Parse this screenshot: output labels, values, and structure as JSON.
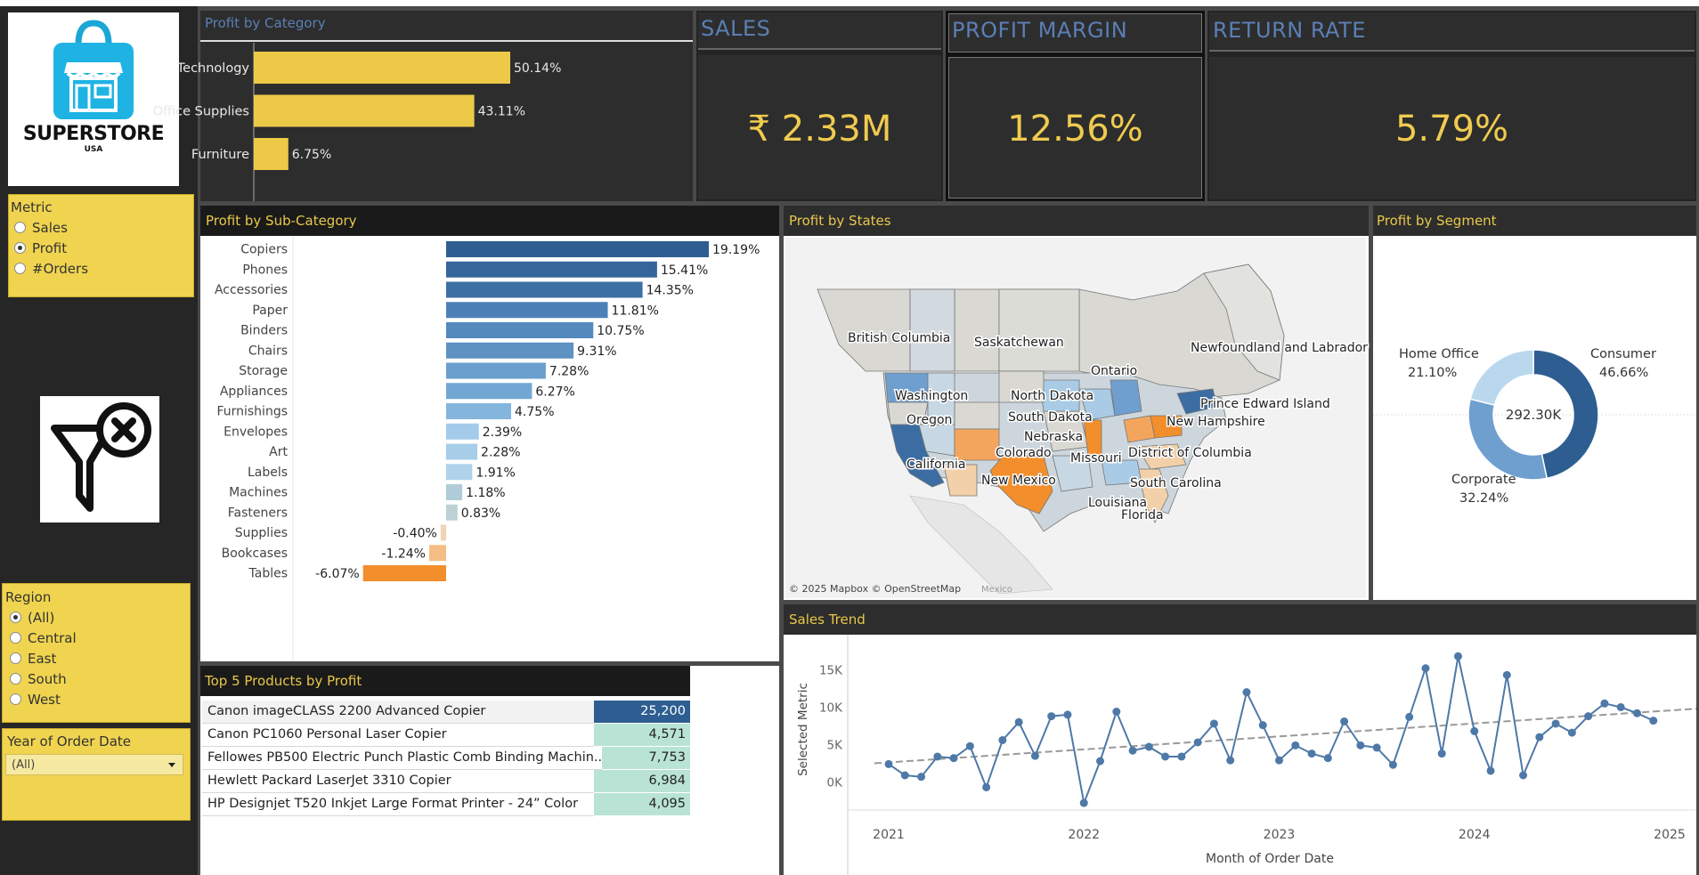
{
  "logo": {
    "name": "SUPERSTORE",
    "sub": "USA"
  },
  "metric_filter": {
    "title": "Metric",
    "options": [
      {
        "label": "Sales",
        "selected": false
      },
      {
        "label": "Profit",
        "selected": true
      },
      {
        "label": "#Orders",
        "selected": false
      }
    ]
  },
  "clear_filter_icon": "filter-clear-icon",
  "region_filter": {
    "title": "Region",
    "options": [
      {
        "label": "(All)",
        "selected": true
      },
      {
        "label": "Central",
        "selected": false
      },
      {
        "label": "East",
        "selected": false
      },
      {
        "label": "South",
        "selected": false
      },
      {
        "label": "West",
        "selected": false
      }
    ]
  },
  "year_filter": {
    "title": "Year of Order Date",
    "value": "(All)"
  },
  "profit_by_category": {
    "title": "Profit by Category",
    "chart_data": {
      "type": "bar",
      "categories": [
        "Technology",
        "Office Supplies",
        "Furniture"
      ],
      "values": [
        50.14,
        43.11,
        6.75
      ],
      "labels": [
        "50.14%",
        "43.11%",
        "6.75%"
      ],
      "color": "#edc948"
    }
  },
  "kpis": {
    "sales": {
      "title": "SALES",
      "value": "₹ 2.33M"
    },
    "profit_margin": {
      "title": "PROFIT MARGIN",
      "value": "12.56%"
    },
    "return_rate": {
      "title": "RETURN RATE",
      "value": "5.79%"
    }
  },
  "profit_by_subcategory": {
    "title": "Profit by Sub-Category",
    "chart_data": {
      "type": "bar",
      "categories": [
        "Copiers",
        "Phones",
        "Accessories",
        "Paper",
        "Binders",
        "Chairs",
        "Storage",
        "Appliances",
        "Furnishings",
        "Envelopes",
        "Art",
        "Labels",
        "Machines",
        "Fasteners",
        "Supplies",
        "Bookcases",
        "Tables"
      ],
      "values": [
        19.19,
        15.41,
        14.35,
        11.81,
        10.75,
        9.31,
        7.28,
        6.27,
        4.75,
        2.39,
        2.28,
        1.91,
        1.18,
        0.83,
        -0.4,
        -1.24,
        -6.07
      ],
      "labels": [
        "19.19%",
        "15.41%",
        "14.35%",
        "11.81%",
        "10.75%",
        "9.31%",
        "7.28%",
        "6.27%",
        "4.75%",
        "2.39%",
        "2.28%",
        "1.91%",
        "1.18%",
        "0.83%",
        "-0.40%",
        "-1.24%",
        "-6.07%"
      ],
      "colors": [
        "#2e5e91",
        "#35669b",
        "#3c6fa3",
        "#4d80b6",
        "#5389bd",
        "#5d92c3",
        "#6a9fcd",
        "#72a7d3",
        "#84b5dd",
        "#a4cbe9",
        "#a7cde9",
        "#b0d3ec",
        "#b0ccd8",
        "#bdd0d5",
        "#f2d3b3",
        "#f5bd84",
        "#f28e2b"
      ]
    }
  },
  "top5": {
    "title": "Top 5 Products by Profit",
    "rows": [
      {
        "name": "Canon imageCLASS 2200 Advanced Copier",
        "value": "25,200",
        "bg": "#2e5e91",
        "fg": "#ffffff"
      },
      {
        "name": "Canon PC1060 Personal Laser Copier",
        "value": "4,571",
        "bg": "#b9e3d5",
        "fg": "#222222"
      },
      {
        "name": "Fellowes PB500 Electric Punch Plastic Comb Binding Machin..",
        "value": "7,753",
        "bg": "#b9e3d5",
        "fg": "#222222"
      },
      {
        "name": "Hewlett Packard LaserJet 3310 Copier",
        "value": "6,984",
        "bg": "#b9e3d5",
        "fg": "#222222"
      },
      {
        "name": "HP Designjet T520 Inkjet Large Format Printer - 24” Color",
        "value": "4,095",
        "bg": "#b9e3d5",
        "fg": "#222222"
      }
    ]
  },
  "profit_by_states": {
    "title": "Profit by States",
    "labels": [
      "British Columbia",
      "Saskatchewan",
      "Newfoundland and Labrador",
      "Ontario",
      "Washington",
      "North Dakota",
      "Prince Edward Island",
      "Oregon",
      "South Dakota",
      "New Hampshire",
      "Nebraska",
      "Colorado",
      "District of Columbia",
      "California",
      "Missouri",
      "New Mexico",
      "South Carolina",
      "Louisiana",
      "Florida"
    ],
    "attribution": "© 2025 Mapbox © OpenStreetMap",
    "watermark": "Mexico"
  },
  "profit_by_segment": {
    "title": "Profit by Segment",
    "center_label": "292.30K",
    "chart_data": {
      "type": "pie",
      "categories": [
        "Consumer",
        "Corporate",
        "Home Office"
      ],
      "values": [
        46.66,
        32.24,
        21.1
      ],
      "labels": [
        "46.66%",
        "32.24%",
        "21.10%"
      ],
      "colors": [
        "#2e5e91",
        "#6f9fcf",
        "#b9d8ee"
      ]
    }
  },
  "sales_trend": {
    "title": "Sales Trend",
    "chart_data": {
      "type": "line",
      "xlabel": "Month of Order Date",
      "ylabel": "Selected Metric",
      "x_ticks": [
        "2021",
        "2022",
        "2023",
        "2024",
        "2025"
      ],
      "y_ticks": [
        "0K",
        "5K",
        "10K",
        "15K"
      ],
      "ylim": [
        -3500,
        18500
      ],
      "x": [
        "2021-01",
        "2021-02",
        "2021-03",
        "2021-04",
        "2021-05",
        "2021-06",
        "2021-07",
        "2021-08",
        "2021-09",
        "2021-10",
        "2021-11",
        "2021-12",
        "2022-01",
        "2022-02",
        "2022-03",
        "2022-04",
        "2022-05",
        "2022-06",
        "2022-07",
        "2022-08",
        "2022-09",
        "2022-10",
        "2022-11",
        "2022-12",
        "2023-01",
        "2023-02",
        "2023-03",
        "2023-04",
        "2023-05",
        "2023-06",
        "2023-07",
        "2023-08",
        "2023-09",
        "2023-10",
        "2023-11",
        "2023-12",
        "2024-01",
        "2024-02",
        "2024-03",
        "2024-04",
        "2024-05",
        "2024-06",
        "2024-07",
        "2024-08",
        "2024-09",
        "2024-10",
        "2024-11",
        "2024-12"
      ],
      "values": [
        2400,
        900,
        700,
        3400,
        3200,
        4800,
        -700,
        5600,
        8000,
        3500,
        8800,
        9000,
        -2800,
        2800,
        9400,
        4200,
        4700,
        3400,
        3400,
        5300,
        7800,
        2900,
        12000,
        7600,
        2900,
        4900,
        3800,
        3200,
        8100,
        4900,
        4600,
        2300,
        8700,
        15200,
        3800,
        16800,
        6800,
        1500,
        14300,
        900,
        6000,
        7800,
        6600,
        8800,
        10500,
        10000,
        9200,
        8200
      ],
      "trend_line": [
        2500,
        9800
      ],
      "color": "#4e79a7"
    }
  }
}
